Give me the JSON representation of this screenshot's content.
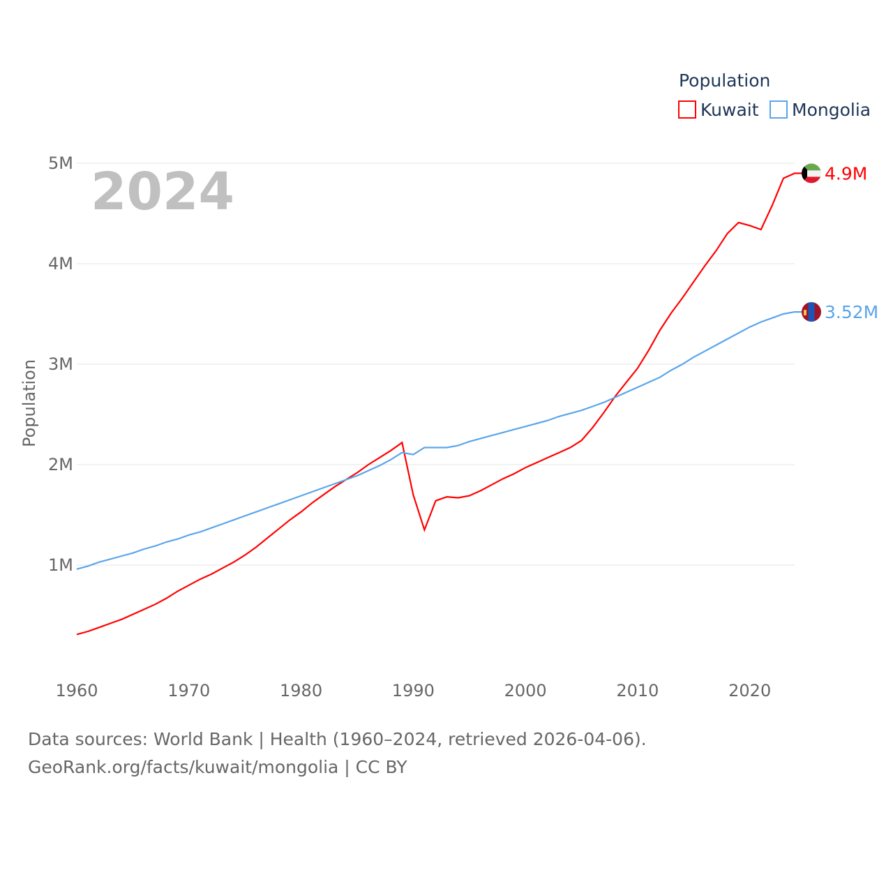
{
  "chart_data": {
    "type": "line",
    "year_watermark": "2024",
    "ylabel": "Population",
    "xlabel": "",
    "legend_title": "Population",
    "legend_position": "top-right",
    "xlim": [
      1960,
      2024
    ],
    "ylim": [
      0,
      5000000
    ],
    "x_ticks": [
      "1960",
      "1970",
      "1980",
      "1990",
      "2000",
      "2010",
      "2020"
    ],
    "y_ticks": [
      {
        "v": 1000000,
        "label": "1M"
      },
      {
        "v": 2000000,
        "label": "2M"
      },
      {
        "v": 3000000,
        "label": "3M"
      },
      {
        "v": 4000000,
        "label": "4M"
      },
      {
        "v": 5000000,
        "label": "5M"
      }
    ],
    "grid": true,
    "x_start": 1960,
    "series": [
      {
        "name": "Kuwait",
        "color": "#ff0000",
        "end_label": "4.9M",
        "flag": "kuwait-flag",
        "values_millions": [
          0.31,
          0.34,
          0.38,
          0.42,
          0.46,
          0.51,
          0.56,
          0.61,
          0.67,
          0.74,
          0.8,
          0.86,
          0.91,
          0.97,
          1.03,
          1.1,
          1.18,
          1.27,
          1.36,
          1.45,
          1.53,
          1.62,
          1.7,
          1.78,
          1.85,
          1.92,
          2.0,
          2.07,
          2.14,
          2.22,
          1.7,
          1.35,
          1.64,
          1.68,
          1.67,
          1.69,
          1.74,
          1.8,
          1.86,
          1.91,
          1.97,
          2.02,
          2.07,
          2.12,
          2.17,
          2.24,
          2.37,
          2.52,
          2.68,
          2.82,
          2.96,
          3.14,
          3.34,
          3.51,
          3.66,
          3.82,
          3.98,
          4.13,
          4.3,
          4.41,
          4.38,
          4.34,
          4.58,
          4.85,
          4.9
        ]
      },
      {
        "name": "Mongolia",
        "color": "#5aa5ea",
        "end_label": "3.52M",
        "flag": "mongolia-flag",
        "values_millions": [
          0.96,
          0.99,
          1.03,
          1.06,
          1.09,
          1.12,
          1.16,
          1.19,
          1.23,
          1.26,
          1.3,
          1.33,
          1.37,
          1.41,
          1.45,
          1.49,
          1.53,
          1.57,
          1.61,
          1.65,
          1.69,
          1.73,
          1.77,
          1.81,
          1.85,
          1.89,
          1.94,
          1.99,
          2.05,
          2.12,
          2.1,
          2.17,
          2.17,
          2.17,
          2.19,
          2.23,
          2.26,
          2.29,
          2.32,
          2.35,
          2.38,
          2.41,
          2.44,
          2.48,
          2.51,
          2.54,
          2.58,
          2.62,
          2.67,
          2.72,
          2.77,
          2.82,
          2.87,
          2.94,
          3.0,
          3.07,
          3.13,
          3.19,
          3.25,
          3.31,
          3.37,
          3.42,
          3.46,
          3.5,
          3.52
        ]
      }
    ]
  },
  "footer": {
    "line1": "Data sources: World Bank | Health (1960–2024, retrieved 2026-04-06).",
    "line2": "GeoRank.org/facts/kuwait/mongolia | CC BY"
  }
}
